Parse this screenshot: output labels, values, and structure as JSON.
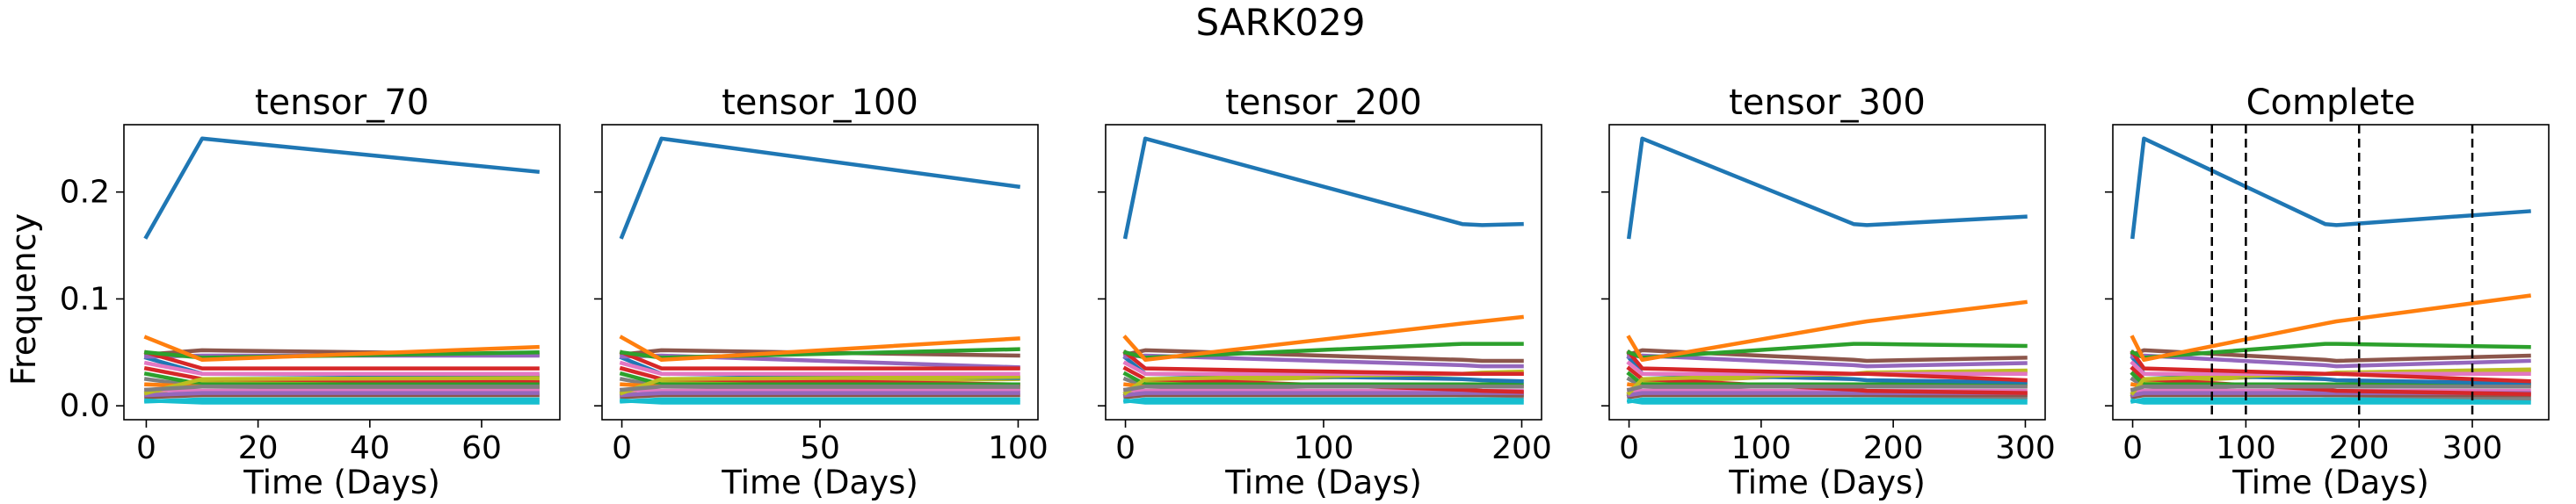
{
  "suptitle": "SARK029",
  "shared_ylabel": "Frequency",
  "colors": [
    "#1f77b4",
    "#ff7f0e",
    "#2ca02c",
    "#d62728",
    "#9467bd",
    "#8c564b",
    "#e377c2",
    "#7f7f7f",
    "#bcbd22",
    "#17becf"
  ],
  "chart_data": [
    {
      "type": "line",
      "title": "tensor_70",
      "xlabel": "Time (Days)",
      "ylabel": "Frequency",
      "xlim": [
        -4,
        74
      ],
      "ylim": [
        -0.013,
        0.263
      ],
      "xticks": [
        0,
        20,
        40,
        60
      ],
      "yticks": [
        0.0,
        0.1,
        0.2
      ],
      "vlines": [],
      "x": [
        0,
        10,
        70
      ],
      "series": [
        {
          "values": [
            0.158,
            0.25,
            0.219
          ]
        },
        {
          "values": [
            0.064,
            0.043,
            0.055
          ]
        },
        {
          "values": [
            0.05,
            0.045,
            0.05
          ]
        },
        {
          "values": [
            0.05,
            0.035,
            0.035
          ]
        },
        {
          "values": [
            0.046,
            0.047,
            0.047
          ]
        },
        {
          "values": [
            0.048,
            0.052,
            0.048
          ]
        },
        {
          "values": [
            0.04,
            0.03,
            0.03
          ]
        },
        {
          "values": [
            0.015,
            0.018,
            0.018
          ]
        },
        {
          "values": [
            0.012,
            0.025,
            0.026
          ]
        },
        {
          "values": [
            0.005,
            0.003,
            0.003
          ]
        },
        {
          "values": [
            0.045,
            0.03,
            0.028
          ]
        },
        {
          "values": [
            0.02,
            0.018,
            0.018
          ]
        },
        {
          "values": [
            0.03,
            0.02,
            0.02
          ]
        },
        {
          "values": [
            0.035,
            0.025,
            0.022
          ]
        },
        {
          "values": [
            0.01,
            0.012,
            0.012
          ]
        },
        {
          "values": [
            0.008,
            0.01,
            0.01
          ]
        },
        {
          "values": [
            0.015,
            0.014,
            0.014
          ]
        },
        {
          "values": [
            0.025,
            0.018,
            0.016
          ]
        },
        {
          "values": [
            0.01,
            0.022,
            0.024
          ]
        },
        {
          "values": [
            0.004,
            0.006,
            0.006
          ]
        }
      ]
    },
    {
      "type": "line",
      "title": "tensor_100",
      "xlabel": "Time (Days)",
      "ylabel": "",
      "xlim": [
        -5,
        105
      ],
      "ylim": [
        -0.013,
        0.263
      ],
      "xticks": [
        0,
        50,
        100
      ],
      "yticks": [
        0.0,
        0.1,
        0.2
      ],
      "vlines": [],
      "x": [
        0,
        10,
        100
      ],
      "series": [
        {
          "values": [
            0.158,
            0.25,
            0.205
          ]
        },
        {
          "values": [
            0.064,
            0.043,
            0.063
          ]
        },
        {
          "values": [
            0.05,
            0.045,
            0.053
          ]
        },
        {
          "values": [
            0.05,
            0.035,
            0.035
          ]
        },
        {
          "values": [
            0.046,
            0.047,
            0.036
          ]
        },
        {
          "values": [
            0.048,
            0.052,
            0.047
          ]
        },
        {
          "values": [
            0.04,
            0.03,
            0.03
          ]
        },
        {
          "values": [
            0.015,
            0.018,
            0.018
          ]
        },
        {
          "values": [
            0.012,
            0.025,
            0.027
          ]
        },
        {
          "values": [
            0.005,
            0.003,
            0.003
          ]
        },
        {
          "values": [
            0.045,
            0.03,
            0.026
          ]
        },
        {
          "values": [
            0.02,
            0.018,
            0.018
          ]
        },
        {
          "values": [
            0.03,
            0.02,
            0.02
          ]
        },
        {
          "values": [
            0.035,
            0.025,
            0.02
          ]
        },
        {
          "values": [
            0.01,
            0.012,
            0.012
          ]
        },
        {
          "values": [
            0.008,
            0.01,
            0.01
          ]
        },
        {
          "values": [
            0.015,
            0.014,
            0.014
          ]
        },
        {
          "values": [
            0.025,
            0.018,
            0.015
          ]
        },
        {
          "values": [
            0.01,
            0.022,
            0.025
          ]
        },
        {
          "values": [
            0.004,
            0.006,
            0.006
          ]
        }
      ]
    },
    {
      "type": "line",
      "title": "tensor_200",
      "xlabel": "Time (Days)",
      "ylabel": "",
      "xlim": [
        -10,
        210
      ],
      "ylim": [
        -0.013,
        0.263
      ],
      "xticks": [
        0,
        100,
        200
      ],
      "yticks": [
        0.0,
        0.1,
        0.2
      ],
      "vlines": [],
      "x": [
        0,
        10,
        170,
        180,
        200
      ],
      "series": [
        {
          "values": [
            0.158,
            0.25,
            0.17,
            0.169,
            0.17
          ]
        },
        {
          "values": [
            0.064,
            0.043,
            0.077,
            0.079,
            0.083
          ]
        },
        {
          "values": [
            0.05,
            0.045,
            0.058,
            0.058,
            0.058
          ]
        },
        {
          "values": [
            0.05,
            0.035,
            0.03,
            0.03,
            0.03
          ]
        },
        {
          "values": [
            0.046,
            0.047,
            0.038,
            0.037,
            0.037
          ]
        },
        {
          "values": [
            0.048,
            0.052,
            0.043,
            0.042,
            0.042
          ]
        },
        {
          "values": [
            0.04,
            0.03,
            0.03,
            0.03,
            0.03
          ]
        },
        {
          "values": [
            0.015,
            0.018,
            0.018,
            0.018,
            0.018
          ]
        },
        {
          "values": [
            0.012,
            0.025,
            0.03,
            0.03,
            0.03
          ]
        },
        {
          "values": [
            0.005,
            0.003,
            0.003,
            0.003,
            0.003
          ]
        },
        {
          "values": [
            0.045,
            0.03,
            0.025,
            0.024,
            0.023
          ]
        },
        {
          "values": [
            0.02,
            0.018,
            0.018,
            0.018,
            0.018
          ]
        },
        {
          "values": [
            0.03,
            0.02,
            0.02,
            0.02,
            0.02
          ]
        },
        {
          "values": [
            0.035,
            0.025,
            0.015,
            0.014,
            0.013
          ]
        },
        {
          "values": [
            0.01,
            0.012,
            0.012,
            0.012,
            0.012
          ]
        },
        {
          "values": [
            0.008,
            0.01,
            0.01,
            0.01,
            0.01
          ]
        },
        {
          "values": [
            0.015,
            0.014,
            0.014,
            0.014,
            0.014
          ]
        },
        {
          "values": [
            0.025,
            0.018,
            0.01,
            0.01,
            0.009
          ]
        },
        {
          "values": [
            0.01,
            0.022,
            0.03,
            0.031,
            0.032
          ]
        },
        {
          "values": [
            0.004,
            0.006,
            0.006,
            0.006,
            0.006
          ]
        }
      ]
    },
    {
      "type": "line",
      "title": "tensor_300",
      "xlabel": "Time (Days)",
      "ylabel": "",
      "xlim": [
        -15,
        315
      ],
      "ylim": [
        -0.013,
        0.263
      ],
      "xticks": [
        0,
        100,
        200,
        300
      ],
      "yticks": [
        0.0,
        0.1,
        0.2
      ],
      "vlines": [],
      "x": [
        0,
        10,
        170,
        180,
        300
      ],
      "series": [
        {
          "values": [
            0.158,
            0.25,
            0.17,
            0.169,
            0.177
          ]
        },
        {
          "values": [
            0.064,
            0.043,
            0.077,
            0.079,
            0.097
          ]
        },
        {
          "values": [
            0.05,
            0.045,
            0.058,
            0.058,
            0.056
          ]
        },
        {
          "values": [
            0.05,
            0.035,
            0.03,
            0.03,
            0.024
          ]
        },
        {
          "values": [
            0.046,
            0.047,
            0.038,
            0.037,
            0.04
          ]
        },
        {
          "values": [
            0.048,
            0.052,
            0.043,
            0.042,
            0.045
          ]
        },
        {
          "values": [
            0.04,
            0.03,
            0.03,
            0.03,
            0.03
          ]
        },
        {
          "values": [
            0.015,
            0.018,
            0.018,
            0.018,
            0.018
          ]
        },
        {
          "values": [
            0.012,
            0.025,
            0.03,
            0.03,
            0.032
          ]
        },
        {
          "values": [
            0.005,
            0.003,
            0.003,
            0.003,
            0.003
          ]
        },
        {
          "values": [
            0.045,
            0.03,
            0.025,
            0.024,
            0.022
          ]
        },
        {
          "values": [
            0.02,
            0.018,
            0.018,
            0.018,
            0.018
          ]
        },
        {
          "values": [
            0.03,
            0.02,
            0.02,
            0.02,
            0.02
          ]
        },
        {
          "values": [
            0.035,
            0.025,
            0.015,
            0.014,
            0.012
          ]
        },
        {
          "values": [
            0.01,
            0.012,
            0.012,
            0.012,
            0.012
          ]
        },
        {
          "values": [
            0.008,
            0.01,
            0.01,
            0.01,
            0.01
          ]
        },
        {
          "values": [
            0.015,
            0.014,
            0.014,
            0.014,
            0.014
          ]
        },
        {
          "values": [
            0.025,
            0.018,
            0.01,
            0.01,
            0.008
          ]
        },
        {
          "values": [
            0.01,
            0.022,
            0.03,
            0.031,
            0.033
          ]
        },
        {
          "values": [
            0.004,
            0.006,
            0.006,
            0.006,
            0.006
          ]
        }
      ]
    },
    {
      "type": "line",
      "title": "Complete",
      "xlabel": "Time (Days)",
      "ylabel": "",
      "xlim": [
        -17.5,
        367.5
      ],
      "ylim": [
        -0.013,
        0.263
      ],
      "xticks": [
        0,
        100,
        200,
        300
      ],
      "yticks": [
        0.0,
        0.1,
        0.2
      ],
      "vlines": [
        70,
        100,
        200,
        300
      ],
      "x": [
        0,
        10,
        170,
        180,
        350
      ],
      "series": [
        {
          "values": [
            0.158,
            0.25,
            0.17,
            0.169,
            0.182
          ]
        },
        {
          "values": [
            0.064,
            0.043,
            0.077,
            0.079,
            0.103
          ]
        },
        {
          "values": [
            0.05,
            0.045,
            0.058,
            0.058,
            0.055
          ]
        },
        {
          "values": [
            0.05,
            0.035,
            0.03,
            0.03,
            0.023
          ]
        },
        {
          "values": [
            0.046,
            0.047,
            0.038,
            0.037,
            0.042
          ]
        },
        {
          "values": [
            0.048,
            0.052,
            0.043,
            0.042,
            0.047
          ]
        },
        {
          "values": [
            0.04,
            0.03,
            0.03,
            0.03,
            0.03
          ]
        },
        {
          "values": [
            0.015,
            0.018,
            0.018,
            0.018,
            0.018
          ]
        },
        {
          "values": [
            0.012,
            0.025,
            0.03,
            0.03,
            0.033
          ]
        },
        {
          "values": [
            0.005,
            0.003,
            0.003,
            0.003,
            0.003
          ]
        },
        {
          "values": [
            0.045,
            0.03,
            0.025,
            0.024,
            0.021
          ]
        },
        {
          "values": [
            0.02,
            0.018,
            0.018,
            0.018,
            0.018
          ]
        },
        {
          "values": [
            0.03,
            0.02,
            0.02,
            0.02,
            0.02
          ]
        },
        {
          "values": [
            0.035,
            0.025,
            0.015,
            0.014,
            0.011
          ]
        },
        {
          "values": [
            0.01,
            0.012,
            0.012,
            0.012,
            0.012
          ]
        },
        {
          "values": [
            0.008,
            0.01,
            0.01,
            0.01,
            0.01
          ]
        },
        {
          "values": [
            0.015,
            0.014,
            0.014,
            0.014,
            0.014
          ]
        },
        {
          "values": [
            0.025,
            0.018,
            0.01,
            0.01,
            0.007
          ]
        },
        {
          "values": [
            0.01,
            0.022,
            0.03,
            0.031,
            0.034
          ]
        },
        {
          "values": [
            0.004,
            0.006,
            0.006,
            0.006,
            0.006
          ]
        }
      ]
    }
  ]
}
